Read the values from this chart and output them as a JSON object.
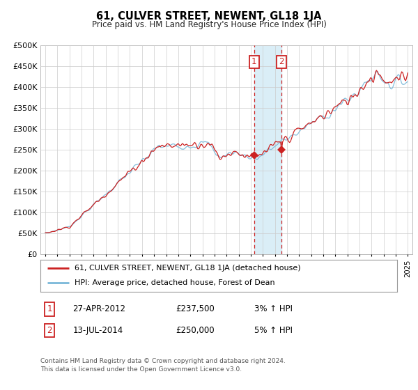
{
  "title": "61, CULVER STREET, NEWENT, GL18 1JA",
  "subtitle": "Price paid vs. HM Land Registry's House Price Index (HPI)",
  "ylim": [
    0,
    500000
  ],
  "yticks": [
    0,
    50000,
    100000,
    150000,
    200000,
    250000,
    300000,
    350000,
    400000,
    450000,
    500000
  ],
  "ytick_labels": [
    "£0",
    "£50K",
    "£100K",
    "£150K",
    "£200K",
    "£250K",
    "£300K",
    "£350K",
    "£400K",
    "£450K",
    "£500K"
  ],
  "hpi_color": "#7ab8d9",
  "price_color": "#cc2222",
  "span_color": "#daeef7",
  "background_color": "#ffffff",
  "grid_color": "#cccccc",
  "sale1_t": 2012.29,
  "sale1_price": 237500,
  "sale2_t": 2014.54,
  "sale2_price": 250000,
  "legend_line1": "61, CULVER STREET, NEWENT, GL18 1JA (detached house)",
  "legend_line2": "HPI: Average price, detached house, Forest of Dean",
  "row1_date": "27-APR-2012",
  "row1_price": "£237,500",
  "row1_hpi": "3% ↑ HPI",
  "row2_date": "13-JUL-2014",
  "row2_price": "£250,000",
  "row2_hpi": "5% ↑ HPI",
  "footer": "Contains HM Land Registry data © Crown copyright and database right 2024.\nThis data is licensed under the Open Government Licence v3.0.",
  "start_year": 1995,
  "end_year": 2025
}
